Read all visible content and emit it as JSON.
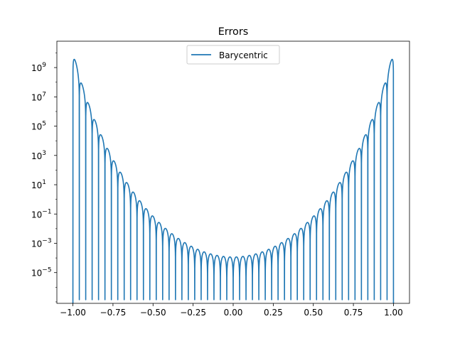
{
  "chart_data": {
    "type": "line",
    "title": "Errors",
    "xlabel": "",
    "ylabel": "",
    "yscale": "log",
    "xlim": [
      -1.1,
      1.1
    ],
    "ylim_log10": [
      -7.1,
      10.8
    ],
    "grid": false,
    "legend_position": "upper center",
    "x_ticks": [
      -1.0,
      -0.75,
      -0.5,
      -0.25,
      0.0,
      0.25,
      0.5,
      0.75,
      1.0
    ],
    "x_tick_labels": [
      "−1.00",
      "−0.75",
      "−0.50",
      "−0.25",
      "0.00",
      "0.25",
      "0.50",
      "0.75",
      "1.00"
    ],
    "y_ticks_log10": [
      -5,
      -3,
      -1,
      1,
      3,
      5,
      7,
      9
    ],
    "y_tick_labels": [
      {
        "base": "10",
        "exp": "−5"
      },
      {
        "base": "10",
        "exp": "−3"
      },
      {
        "base": "10",
        "exp": "−1"
      },
      {
        "base": "10",
        "exp": "1"
      },
      {
        "base": "10",
        "exp": "3"
      },
      {
        "base": "10",
        "exp": "5"
      },
      {
        "base": "10",
        "exp": "7"
      },
      {
        "base": "10",
        "exp": "9"
      }
    ],
    "series": [
      {
        "name": "Barycentric",
        "color": "#1f77b4",
        "description_points": {
          "x": [
            -1.0,
            -0.98,
            -0.96,
            -0.9,
            -0.8,
            -0.7,
            -0.6,
            -0.5,
            -0.4,
            -0.3,
            -0.2,
            -0.1,
            0.0,
            0.1,
            0.2,
            0.3,
            0.4,
            0.5,
            0.6,
            0.7,
            0.8,
            0.9,
            0.96,
            0.98,
            1.0
          ],
          "y_log10_peaks": [
            -7.1,
            9.5,
            8.0,
            6.5,
            4.4,
            2.2,
            0.5,
            -1.0,
            -2.0,
            -2.7,
            -3.2,
            -3.4,
            -6.8,
            -3.4,
            -3.2,
            -2.7,
            -2.0,
            -1.0,
            0.5,
            2.2,
            4.4,
            6.5,
            8.0,
            9.5,
            -7.1
          ]
        }
      }
    ]
  }
}
